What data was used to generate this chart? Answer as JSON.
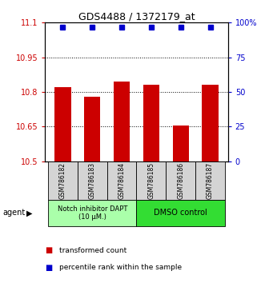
{
  "title": "GDS4488 / 1372179_at",
  "categories": [
    "GSM786182",
    "GSM786183",
    "GSM786184",
    "GSM786185",
    "GSM786186",
    "GSM786187"
  ],
  "bar_values": [
    10.82,
    10.78,
    10.845,
    10.83,
    10.655,
    10.83
  ],
  "percentile_values": [
    97,
    97,
    97,
    97,
    97,
    97
  ],
  "ylim_left": [
    10.5,
    11.1
  ],
  "ylim_right": [
    0,
    100
  ],
  "yticks_left": [
    10.5,
    10.65,
    10.8,
    10.95,
    11.1
  ],
  "ytick_labels_left": [
    "10.5",
    "10.65",
    "10.8",
    "10.95",
    "11.1"
  ],
  "yticks_right": [
    0,
    25,
    50,
    75,
    100
  ],
  "ytick_labels_right": [
    "0",
    "25",
    "50",
    "75",
    "100%"
  ],
  "bar_color": "#cc0000",
  "dot_color": "#0000cc",
  "bar_bottom": 10.5,
  "group1_label": "Notch inhibitor DAPT\n(10 μM.)",
  "group2_label": "DMSO control",
  "group1_color": "#aaffaa",
  "group2_color": "#33dd33",
  "agent_label": "agent",
  "legend_bar_label": "transformed count",
  "legend_dot_label": "percentile rank within the sample",
  "background_color": "#ffffff",
  "figsize": [
    3.31,
    3.54
  ],
  "dpi": 100
}
